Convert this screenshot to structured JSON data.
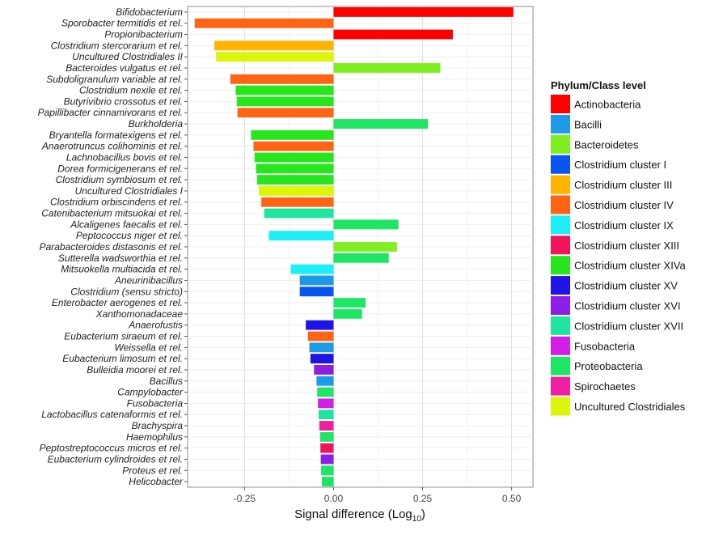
{
  "chart_data": {
    "type": "bar",
    "orientation": "horizontal",
    "xlabel": "Signal difference (Log",
    "xlabel_subscript": "10",
    "xlabel_close": ")",
    "xlim": [
      -0.41,
      0.56
    ],
    "xticks": [
      -0.25,
      0.0,
      0.25,
      0.5
    ],
    "xtick_labels": [
      "-0.25",
      "0.00",
      "0.25",
      "0.50"
    ],
    "grid": true,
    "legend": {
      "title": "Phylum/Class level",
      "position": "right",
      "entries": [
        {
          "name": "Actinobacteria",
          "color": "#FF0000"
        },
        {
          "name": "Bacilli",
          "color": "#1E9BE6"
        },
        {
          "name": "Bacteroidetes",
          "color": "#80EE20"
        },
        {
          "name": "Clostridium cluster I",
          "color": "#0A55F0"
        },
        {
          "name": "Clostridium cluster III",
          "color": "#FFB400"
        },
        {
          "name": "Clostridium cluster IV",
          "color": "#FF6414"
        },
        {
          "name": "Clostridium cluster IX",
          "color": "#1EEEF5"
        },
        {
          "name": "Clostridium cluster XIII",
          "color": "#F0145A"
        },
        {
          "name": "Clostridium cluster XIVa",
          "color": "#28E61E"
        },
        {
          "name": "Clostridium cluster XV",
          "color": "#1E14E6"
        },
        {
          "name": "Clostridium cluster XVI",
          "color": "#8C1EE6"
        },
        {
          "name": "Clostridium cluster XVII",
          "color": "#1EE6A0"
        },
        {
          "name": "Fusobacteria",
          "color": "#D21EE6"
        },
        {
          "name": "Proteobacteria",
          "color": "#1EE664"
        },
        {
          "name": "Spirochaetes",
          "color": "#F01EA0"
        },
        {
          "name": "Uncultured Clostridiales",
          "color": "#DCF50A"
        }
      ]
    },
    "bars": [
      {
        "label": "Bifidobacterium",
        "value": 0.505,
        "group": "Actinobacteria"
      },
      {
        "label": "Sporobacter termitidis et rel.",
        "value": -0.39,
        "group": "Clostridium cluster IV"
      },
      {
        "label": "Propionibacterium",
        "value": 0.335,
        "group": "Actinobacteria"
      },
      {
        "label": "Clostridium stercorarium et rel.",
        "value": -0.335,
        "group": "Clostridium cluster III"
      },
      {
        "label": "Uncultured Clostridiales II",
        "value": -0.33,
        "group": "Uncultured Clostridiales"
      },
      {
        "label": "Bacteroides vulgatus et rel.",
        "value": 0.3,
        "group": "Bacteroidetes"
      },
      {
        "label": "Subdoligranulum variable at rel.",
        "value": -0.29,
        "group": "Clostridium cluster IV"
      },
      {
        "label": "Clostridium nexile et rel.",
        "value": -0.275,
        "group": "Clostridium cluster XIVa"
      },
      {
        "label": "Butyrivibrio crossotus et rel.",
        "value": -0.272,
        "group": "Clostridium cluster XIVa"
      },
      {
        "label": "Papillibacter cinnamivorans et rel.",
        "value": -0.27,
        "group": "Clostridium cluster IV"
      },
      {
        "label": "Burkholderia",
        "value": 0.265,
        "group": "Proteobacteria"
      },
      {
        "label": "Bryantella formatexigens et rel.",
        "value": -0.232,
        "group": "Clostridium cluster XIVa"
      },
      {
        "label": "Anaerotruncus colihominis et rel.",
        "value": -0.225,
        "group": "Clostridium cluster IV"
      },
      {
        "label": "Lachnobacillus bovis et rel.",
        "value": -0.222,
        "group": "Clostridium cluster XIVa"
      },
      {
        "label": "Dorea formicigenerans et rel.",
        "value": -0.218,
        "group": "Clostridium cluster XIVa"
      },
      {
        "label": "Clostridium symbiosum et rel.",
        "value": -0.215,
        "group": "Clostridium cluster XIVa"
      },
      {
        "label": "Uncultured Clostridiales I",
        "value": -0.21,
        "group": "Uncultured Clostridiales"
      },
      {
        "label": "Clostridium orbiscindens et rel.",
        "value": -0.203,
        "group": "Clostridium cluster IV"
      },
      {
        "label": "Catenibacterium mitsuokai et rel.",
        "value": -0.195,
        "group": "Clostridium cluster XVII"
      },
      {
        "label": "Alcaligenes faecalis et rel.",
        "value": 0.182,
        "group": "Proteobacteria"
      },
      {
        "label": "Peptococcus niger et rel.",
        "value": -0.182,
        "group": "Clostridium cluster IX"
      },
      {
        "label": "Parabacteroides distasonis et rel.",
        "value": 0.178,
        "group": "Bacteroidetes"
      },
      {
        "label": "Sutterella wadsworthia et rel.",
        "value": 0.155,
        "group": "Proteobacteria"
      },
      {
        "label": "Mitsuokella multiacida et rel.",
        "value": -0.12,
        "group": "Clostridium cluster IX"
      },
      {
        "label": "Aneurinibacillus",
        "value": -0.095,
        "group": "Bacilli"
      },
      {
        "label": "Clostridium (sensu stricto)",
        "value": -0.095,
        "group": "Clostridium cluster I"
      },
      {
        "label": "Enterobacter aerogenes et rel.",
        "value": 0.09,
        "group": "Proteobacteria"
      },
      {
        "label": "Xanthomonadaceae",
        "value": 0.08,
        "group": "Proteobacteria"
      },
      {
        "label": "Anaerofustis",
        "value": -0.078,
        "group": "Clostridium cluster XV"
      },
      {
        "label": "Eubacterium siraeum et rel.",
        "value": -0.072,
        "group": "Clostridium cluster IV"
      },
      {
        "label": "Weissella et rel.",
        "value": -0.068,
        "group": "Bacilli"
      },
      {
        "label": "Eubacterium limosum et rel.",
        "value": -0.065,
        "group": "Clostridium cluster XV"
      },
      {
        "label": "Bulleidia moorei et rel.",
        "value": -0.055,
        "group": "Clostridium cluster XVI"
      },
      {
        "label": "Bacillus",
        "value": -0.048,
        "group": "Bacilli"
      },
      {
        "label": "Campylobacter",
        "value": -0.046,
        "group": "Proteobacteria"
      },
      {
        "label": "Fusobacteria",
        "value": -0.044,
        "group": "Fusobacteria"
      },
      {
        "label": "Lactobacillus catenaformis et rel.",
        "value": -0.042,
        "group": "Clostridium cluster XVII"
      },
      {
        "label": "Brachyspira",
        "value": -0.04,
        "group": "Spirochaetes"
      },
      {
        "label": "Haemophilus",
        "value": -0.038,
        "group": "Proteobacteria"
      },
      {
        "label": "Peptostreptococcus micros et rel.",
        "value": -0.037,
        "group": "Clostridium cluster XIII"
      },
      {
        "label": "Eubacterium cylindroides et rel.",
        "value": -0.036,
        "group": "Clostridium cluster XVI"
      },
      {
        "label": "Proteus et rel.",
        "value": -0.035,
        "group": "Proteobacteria"
      },
      {
        "label": "Helicobacter",
        "value": -0.033,
        "group": "Proteobacteria"
      }
    ]
  }
}
